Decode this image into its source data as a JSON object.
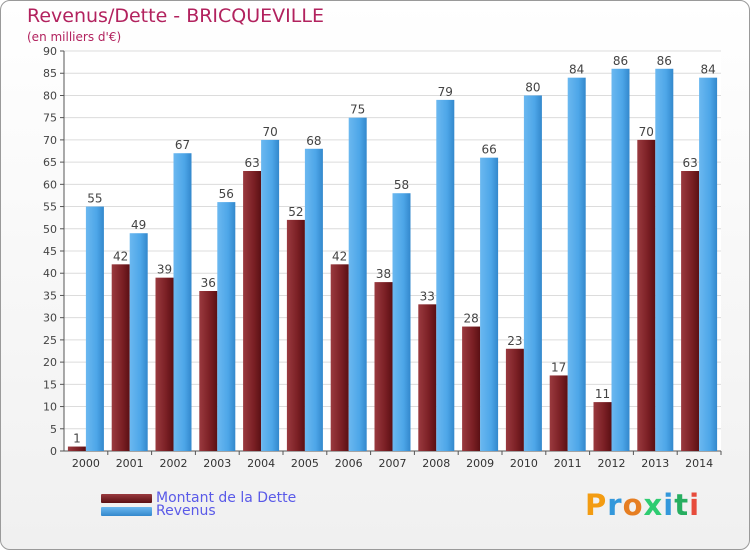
{
  "chart_data": {
    "type": "bar",
    "title": "Revenus/Dette - BRICQUEVILLE",
    "subtitle": "(en milliers d'€)",
    "xlabel": "",
    "ylabel": "",
    "ylim": [
      0,
      90
    ],
    "yticks": [
      0,
      5,
      10,
      15,
      20,
      25,
      30,
      35,
      40,
      45,
      50,
      55,
      60,
      65,
      70,
      75,
      80,
      85,
      90
    ],
    "grid": true,
    "categories": [
      "2000",
      "2001",
      "2002",
      "2003",
      "2004",
      "2005",
      "2006",
      "2007",
      "2008",
      "2009",
      "2010",
      "2011",
      "2012",
      "2013",
      "2014"
    ],
    "series": [
      {
        "name": "Montant de la Dette",
        "color": "#7a1f24",
        "values": [
          1,
          42,
          39,
          36,
          63,
          52,
          42,
          38,
          33,
          28,
          23,
          17,
          11,
          70,
          63
        ]
      },
      {
        "name": "Revenus",
        "color": "#4da6e8",
        "values": [
          55,
          49,
          67,
          56,
          70,
          68,
          75,
          58,
          79,
          66,
          80,
          84,
          86,
          86,
          84
        ]
      }
    ]
  },
  "legend": {
    "items": [
      {
        "label": "Montant de la Dette",
        "color": "#7a1f24"
      },
      {
        "label": "Revenus",
        "color": "#4da6e8"
      }
    ]
  },
  "logo": {
    "letters": [
      "P",
      "r",
      "o",
      "x",
      "i",
      "t",
      "i"
    ],
    "colors": [
      "#f39c12",
      "#3498db",
      "#e67e22",
      "#2ecc71",
      "#3498db",
      "#27ae60",
      "#e74c3c"
    ]
  }
}
